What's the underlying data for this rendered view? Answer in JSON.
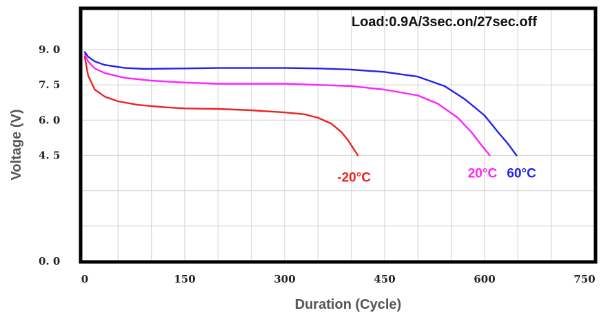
{
  "chart_data": {
    "type": "line",
    "title": "",
    "annotation": "Load:0.9A/3sec.on/27sec.off",
    "xlabel": "Duration (Cycle)",
    "ylabel": "Voltage (V)",
    "xlim": [
      0,
      750
    ],
    "ylim": [
      0,
      10
    ],
    "x_ticks": [
      "0",
      "150",
      "300",
      "450",
      "600",
      "750"
    ],
    "y_ticks": [
      "0. 0",
      "4. 5",
      "6. 0",
      "7. 5",
      "9. 0"
    ],
    "grid": true,
    "legend": "inline labels at curve ends",
    "series": [
      {
        "name": "-20°C",
        "color": "#ee2222",
        "x": [
          0,
          5,
          15,
          30,
          50,
          80,
          120,
          150,
          200,
          250,
          300,
          330,
          350,
          370,
          385,
          395,
          403,
          410
        ],
        "y": [
          8.7,
          7.9,
          7.3,
          7.0,
          6.8,
          6.65,
          6.55,
          6.5,
          6.48,
          6.42,
          6.33,
          6.25,
          6.1,
          5.85,
          5.5,
          5.15,
          4.8,
          4.5
        ]
      },
      {
        "name": "20°C",
        "color": "#ff22ff",
        "x": [
          0,
          5,
          15,
          30,
          60,
          100,
          150,
          200,
          250,
          300,
          350,
          400,
          450,
          500,
          530,
          560,
          580,
          595,
          608
        ],
        "y": [
          8.8,
          8.5,
          8.2,
          8.0,
          7.8,
          7.68,
          7.6,
          7.55,
          7.55,
          7.55,
          7.5,
          7.45,
          7.3,
          7.05,
          6.7,
          6.1,
          5.5,
          4.95,
          4.5
        ]
      },
      {
        "name": "60°C",
        "color": "#2222ee",
        "x": [
          0,
          5,
          15,
          30,
          60,
          90,
          150,
          200,
          250,
          300,
          350,
          400,
          450,
          500,
          540,
          570,
          600,
          620,
          635,
          648
        ],
        "y": [
          8.9,
          8.7,
          8.5,
          8.35,
          8.22,
          8.18,
          8.2,
          8.22,
          8.22,
          8.22,
          8.2,
          8.15,
          8.05,
          7.85,
          7.45,
          6.9,
          6.2,
          5.5,
          5.0,
          4.5
        ]
      }
    ]
  }
}
